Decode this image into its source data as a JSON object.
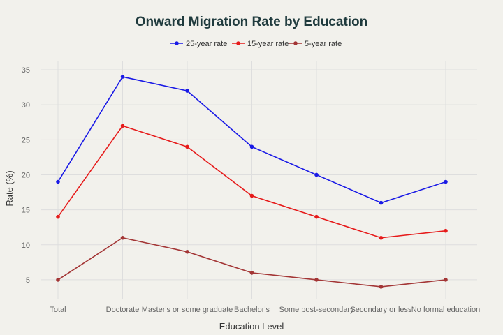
{
  "chart_data": {
    "type": "line",
    "title": "Onward Migration Rate by Education",
    "xlabel": "Education Level",
    "ylabel": "Rate (%)",
    "categories": [
      "Total",
      "Doctorate",
      "Master's or some graduate",
      "Bachelor's",
      "Some post-secondary",
      "Secondary or less",
      "No formal education"
    ],
    "yticks": [
      5,
      10,
      15,
      20,
      25,
      30,
      35
    ],
    "ylim": [
      2.3,
      36.2
    ],
    "grid": true,
    "legend_position": "top-center",
    "series": [
      {
        "name": "25-year rate",
        "color": "#1a1ae6",
        "values": [
          19,
          34,
          32,
          24,
          20,
          16,
          19
        ]
      },
      {
        "name": "15-year rate",
        "color": "#e61a1a",
        "values": [
          14,
          27,
          24,
          17,
          14,
          11,
          12
        ]
      },
      {
        "name": "5-year rate",
        "color": "#a33535",
        "values": [
          5,
          11,
          9,
          6,
          5,
          4,
          5
        ]
      }
    ]
  }
}
